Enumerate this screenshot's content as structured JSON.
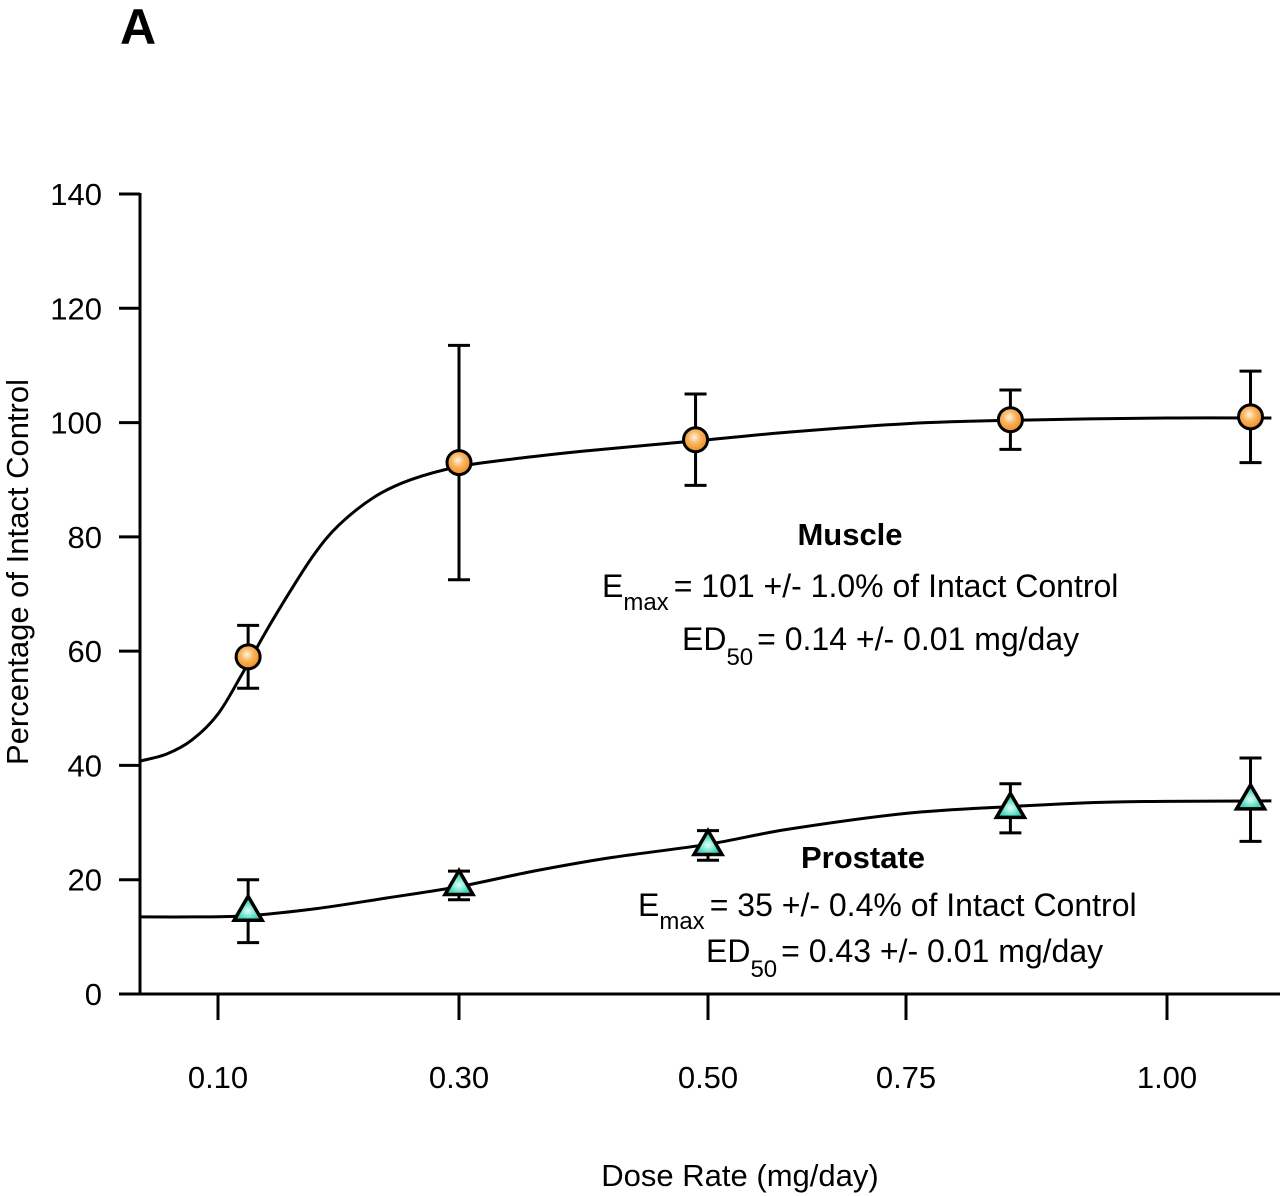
{
  "figure": {
    "panel_label": "A"
  },
  "chart_data": {
    "type": "line",
    "title": "",
    "xlabel": "Dose Rate (mg/day)",
    "ylabel": "Percentage of Intact Control",
    "x_scale": "categorical-log-like",
    "x_ticks": [
      0.1,
      0.3,
      0.5,
      0.75,
      1.0
    ],
    "x_tick_labels": [
      "0.10",
      "0.30",
      "0.50",
      "0.75",
      "1.00"
    ],
    "y_ticks": [
      0,
      20,
      40,
      60,
      80,
      100,
      120,
      140
    ],
    "y_tick_labels": [
      "0",
      "20",
      "40",
      "60",
      "80",
      "100",
      "120",
      "140"
    ],
    "ylim": [
      0,
      140
    ],
    "grid": false,
    "legend": "none",
    "series": [
      {
        "name": "Muscle",
        "marker": "circle",
        "color": "#f7a24a",
        "x": [
          0.125,
          0.3,
          0.49,
          0.85,
          1.08
        ],
        "values": [
          59,
          93,
          97,
          100.5,
          101
        ],
        "error": [
          5.5,
          20.5,
          8,
          5.2,
          8
        ],
        "fit_curve": {
          "x": [
            0.04,
            0.06,
            0.08,
            0.1,
            0.12,
            0.14,
            0.16,
            0.18,
            0.2,
            0.23,
            0.26,
            0.3,
            0.35,
            0.4,
            0.5,
            0.6,
            0.75,
            0.85,
            1.0,
            1.1
          ],
          "y": [
            40.8,
            42,
            44.5,
            49,
            56,
            63.5,
            70.5,
            77,
            82,
            87,
            90,
            92.3,
            93.8,
            95,
            97,
            98.3,
            99.8,
            100.4,
            100.8,
            100.8
          ]
        },
        "annotation": {
          "title": "Muscle",
          "emax_prefix": "E",
          "emax_sub": "max",
          "emax_text": "= 101 +/- 1.0% of Intact Control",
          "ed50_prefix": "ED",
          "ed50_sub": "50",
          "ed50_text": "= 0.14 +/- 0.01 mg/day"
        }
      },
      {
        "name": "Prostate",
        "marker": "triangle",
        "color": "#3fd3b8",
        "x": [
          0.125,
          0.3,
          0.5,
          0.85,
          1.08
        ],
        "values": [
          14.5,
          19,
          26,
          32.5,
          34
        ],
        "error": [
          5.5,
          2.5,
          2.6,
          4.3,
          7.3
        ],
        "fit_curve": {
          "x": [
            0.04,
            0.08,
            0.125,
            0.18,
            0.24,
            0.3,
            0.36,
            0.42,
            0.5,
            0.6,
            0.75,
            0.85,
            0.95,
            1.1
          ],
          "y": [
            13.5,
            13.5,
            13.7,
            14.9,
            16.8,
            18.8,
            21.5,
            23.8,
            26.2,
            28.8,
            31.6,
            32.8,
            33.6,
            33.8
          ]
        },
        "annotation": {
          "title": "Prostate",
          "emax_prefix": "E",
          "emax_sub": "max",
          "emax_text": "= 35 +/- 0.4% of Intact Control",
          "ed50_prefix": "ED",
          "ed50_sub": "50",
          "ed50_text": "= 0.43 +/- 0.01 mg/day"
        }
      }
    ]
  }
}
